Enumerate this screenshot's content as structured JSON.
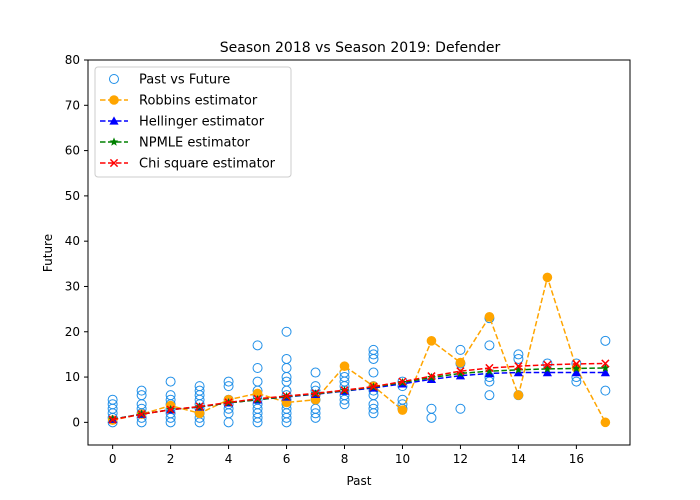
{
  "chart_data": {
    "type": "scatter",
    "title": "Season 2018 vs Season 2019: Defender",
    "xlabel": "Past",
    "ylabel": "Future",
    "xlim": [
      -0.85,
      17.85
    ],
    "ylim": [
      -5,
      80
    ],
    "xticks": [
      0,
      2,
      4,
      6,
      8,
      10,
      12,
      14,
      16
    ],
    "yticks": [
      0,
      10,
      20,
      30,
      40,
      50,
      60,
      70,
      80
    ],
    "legend_position": "top-left",
    "scatter": {
      "name": "Past vs Future",
      "color": "#1f8fe8",
      "points": [
        [
          0,
          0
        ],
        [
          0,
          1
        ],
        [
          0,
          2
        ],
        [
          0,
          3
        ],
        [
          0,
          4
        ],
        [
          0,
          5
        ],
        [
          1,
          0
        ],
        [
          1,
          1
        ],
        [
          1,
          2
        ],
        [
          1,
          3
        ],
        [
          1,
          4
        ],
        [
          1,
          6
        ],
        [
          1,
          7
        ],
        [
          2,
          0
        ],
        [
          2,
          1
        ],
        [
          2,
          2
        ],
        [
          2,
          3
        ],
        [
          2,
          4
        ],
        [
          2,
          5
        ],
        [
          2,
          6
        ],
        [
          2,
          9
        ],
        [
          3,
          0
        ],
        [
          3,
          1
        ],
        [
          3,
          2
        ],
        [
          3,
          3
        ],
        [
          3,
          4
        ],
        [
          3,
          5
        ],
        [
          3,
          6
        ],
        [
          3,
          7
        ],
        [
          3,
          8
        ],
        [
          4,
          0
        ],
        [
          4,
          2
        ],
        [
          4,
          3
        ],
        [
          4,
          4
        ],
        [
          4,
          5
        ],
        [
          4,
          8
        ],
        [
          4,
          9
        ],
        [
          5,
          0
        ],
        [
          5,
          1
        ],
        [
          5,
          2
        ],
        [
          5,
          3
        ],
        [
          5,
          4
        ],
        [
          5,
          5
        ],
        [
          5,
          6
        ],
        [
          5,
          7
        ],
        [
          5,
          9
        ],
        [
          5,
          12
        ],
        [
          5,
          17
        ],
        [
          6,
          0
        ],
        [
          6,
          1
        ],
        [
          6,
          2
        ],
        [
          6,
          3
        ],
        [
          6,
          4
        ],
        [
          6,
          5
        ],
        [
          6,
          6
        ],
        [
          6,
          7
        ],
        [
          6,
          9
        ],
        [
          6,
          10
        ],
        [
          6,
          12
        ],
        [
          6,
          14
        ],
        [
          6,
          20
        ],
        [
          7,
          1
        ],
        [
          7,
          2
        ],
        [
          7,
          3
        ],
        [
          7,
          5
        ],
        [
          7,
          6
        ],
        [
          7,
          7
        ],
        [
          7,
          8
        ],
        [
          7,
          11
        ],
        [
          8,
          4
        ],
        [
          8,
          5
        ],
        [
          8,
          6
        ],
        [
          8,
          7
        ],
        [
          8,
          8
        ],
        [
          8,
          9
        ],
        [
          8,
          10
        ],
        [
          8,
          11
        ],
        [
          9,
          2
        ],
        [
          9,
          3
        ],
        [
          9,
          4
        ],
        [
          9,
          6
        ],
        [
          9,
          7
        ],
        [
          9,
          8
        ],
        [
          9,
          11
        ],
        [
          9,
          14
        ],
        [
          9,
          15
        ],
        [
          9,
          16
        ],
        [
          10,
          3
        ],
        [
          10,
          4
        ],
        [
          10,
          5
        ],
        [
          10,
          8
        ],
        [
          10,
          9
        ],
        [
          11,
          1
        ],
        [
          11,
          3
        ],
        [
          12,
          3
        ],
        [
          12,
          13
        ],
        [
          12,
          16
        ],
        [
          13,
          6
        ],
        [
          13,
          9
        ],
        [
          13,
          10
        ],
        [
          13,
          17
        ],
        [
          13,
          23
        ],
        [
          14,
          6
        ],
        [
          14,
          14
        ],
        [
          14,
          15
        ],
        [
          15,
          13
        ],
        [
          16,
          9
        ],
        [
          16,
          10
        ],
        [
          16,
          13
        ],
        [
          17,
          7
        ],
        [
          17,
          18
        ]
      ]
    },
    "series": [
      {
        "name": "Robbins estimator",
        "color": "#ffa500",
        "marker": "circle",
        "x": [
          0,
          1,
          2,
          3,
          4,
          5,
          6,
          7,
          8,
          9,
          10,
          11,
          12,
          13,
          14,
          15,
          16,
          17
        ],
        "values": [
          0.5,
          1.8,
          3.7,
          2.0,
          5.0,
          6.4,
          4.4,
          5.0,
          12.4,
          8.0,
          2.7,
          18.0,
          13.2,
          23.3,
          6.0,
          32.0,
          12.0,
          0.0
        ]
      },
      {
        "name": "Hellinger estimator",
        "color": "#0000ff",
        "marker": "triangle",
        "x": [
          0,
          1,
          2,
          3,
          4,
          5,
          6,
          7,
          8,
          9,
          10,
          11,
          12,
          13,
          14,
          15,
          16,
          17
        ],
        "values": [
          0.7,
          1.8,
          2.8,
          3.4,
          4.3,
          5.0,
          5.6,
          6.2,
          6.9,
          7.6,
          8.5,
          9.5,
          10.3,
          10.8,
          11.0,
          11.0,
          11.0,
          11.0
        ]
      },
      {
        "name": "NPMLE estimator",
        "color": "#008000",
        "marker": "star",
        "x": [
          0,
          1,
          2,
          3,
          4,
          5,
          6,
          7,
          8,
          9,
          10,
          11,
          12,
          13,
          14,
          15,
          16,
          17
        ],
        "values": [
          0.7,
          1.8,
          2.8,
          3.4,
          4.3,
          5.0,
          5.7,
          6.3,
          7.0,
          7.8,
          8.8,
          9.9,
          10.8,
          11.3,
          11.6,
          11.8,
          11.9,
          12.0
        ]
      },
      {
        "name": "Chi square estimator",
        "color": "#ff0000",
        "marker": "x",
        "x": [
          0,
          1,
          2,
          3,
          4,
          5,
          6,
          7,
          8,
          9,
          10,
          11,
          12,
          13,
          14,
          15,
          16,
          17
        ],
        "values": [
          0.6,
          1.8,
          2.8,
          3.5,
          4.4,
          5.2,
          5.8,
          6.4,
          7.1,
          7.9,
          9.0,
          10.2,
          11.3,
          12.0,
          12.4,
          12.7,
          12.9,
          13.0
        ]
      }
    ]
  }
}
